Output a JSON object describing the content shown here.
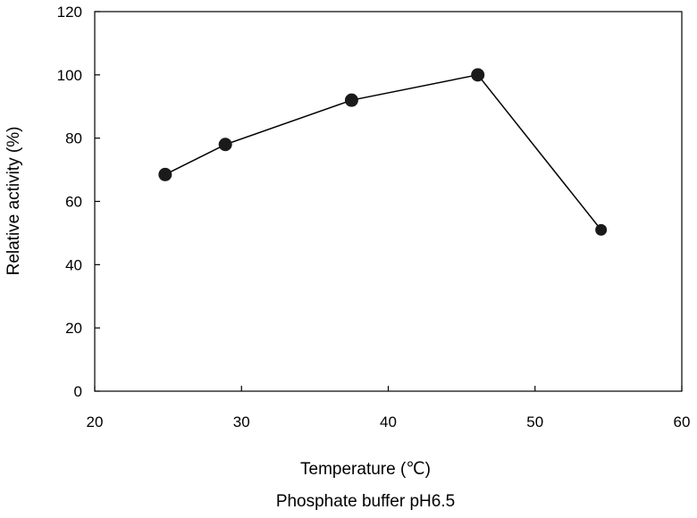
{
  "chart_data": {
    "type": "line",
    "title": "",
    "xlabel": "Temperature (℃)",
    "ylabel": "Relative activity (%)",
    "caption": "Phosphate buffer pH6.5",
    "xlim": [
      20,
      60
    ],
    "ylim": [
      0,
      120
    ],
    "x_ticks": [
      20,
      30,
      40,
      50,
      60
    ],
    "y_ticks": [
      0,
      20,
      40,
      60,
      80,
      100,
      120
    ],
    "grid": false,
    "legend": "none",
    "series": [
      {
        "x": [
          24.8,
          28.9,
          37.5,
          46.1,
          54.5
        ],
        "y": [
          68.5,
          78.0,
          92.0,
          100.0,
          51.0
        ]
      }
    ],
    "colors": {
      "line": "#000000",
      "marker": "#1a1a1a",
      "axis": "#000000"
    }
  }
}
